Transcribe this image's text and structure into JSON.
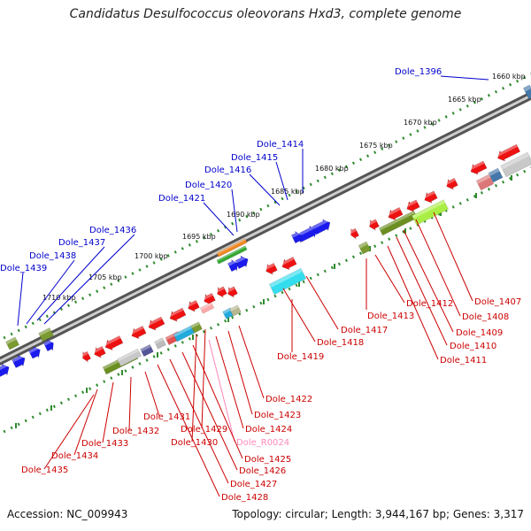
{
  "title": "Candidatus Desulfococcus oleovorans Hxd3, complete genome",
  "accession_text": "Accession: NC_009943",
  "summary_text": "Topology: circular; Length: 3,944,167 bp; Genes: 3,317",
  "colors": {
    "backbone": "#888888",
    "scale_dots": "#2e8b2e",
    "upper_label": "#0000cc",
    "lower_label": "#cc0000",
    "rna_label": "#ff88bb",
    "forward_gene": "#1a1aee",
    "reverse_gene": "#ee1111"
  },
  "scale_labels": [
    "1660 kbp",
    "1665 kbp",
    "1670 kbp",
    "1675 kbp",
    "1680 kbp",
    "1685 kbp",
    "1690 kbp",
    "1695 kbp",
    "1700 kbp",
    "1705 kbp",
    "1710 kbp"
  ],
  "upper_genes": [
    "Dole_1396",
    "Dole_1414",
    "Dole_1415",
    "Dole_1416",
    "Dole_1420",
    "Dole_1421",
    "Dole_1436",
    "Dole_1437",
    "Dole_1438",
    "Dole_1439"
  ],
  "lower_genes": [
    "Dole_1407",
    "Dole_1408",
    "Dole_1409",
    "Dole_1410",
    "Dole_1411",
    "Dole_1412",
    "Dole_1413",
    "Dole_1417",
    "Dole_1418",
    "Dole_1419",
    "Dole_1422",
    "Dole_1423",
    "Dole_1424",
    "Dole_R0024",
    "Dole_1425",
    "Dole_1426",
    "Dole_1427",
    "Dole_1428",
    "Dole_1429",
    "Dole_1430",
    "Dole_1431",
    "Dole_1432",
    "Dole_1433",
    "Dole_1434",
    "Dole_1435"
  ]
}
